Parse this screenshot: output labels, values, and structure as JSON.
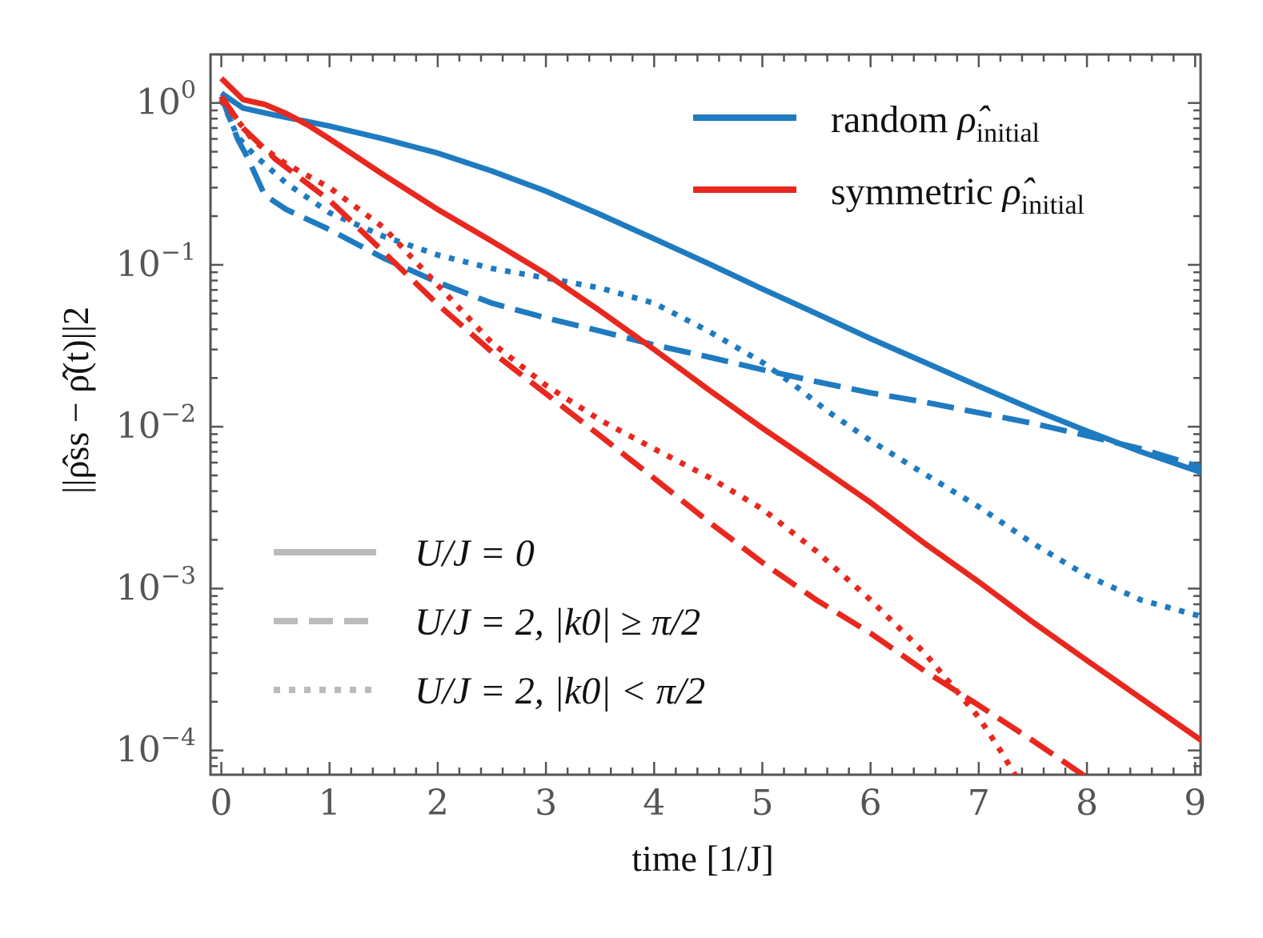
{
  "chart_data": {
    "type": "line",
    "title": "",
    "xlabel": "time  [1/J]",
    "ylabel": "||ρ̂ss − ρ̂(t)||2",
    "yscale": "log",
    "xlim": [
      -0.1,
      9.05
    ],
    "ylim_log10": [
      -4.15,
      0.3
    ],
    "x_ticks": [
      {
        "value": 0,
        "label": "0"
      },
      {
        "value": 1,
        "label": "1"
      },
      {
        "value": 2,
        "label": "2"
      },
      {
        "value": 3,
        "label": "3"
      },
      {
        "value": 4,
        "label": "4"
      },
      {
        "value": 5,
        "label": "5"
      },
      {
        "value": 6,
        "label": "6"
      },
      {
        "value": 7,
        "label": "7"
      },
      {
        "value": 8,
        "label": "8"
      },
      {
        "value": 9,
        "label": "9"
      }
    ],
    "y_ticks": [
      {
        "exp": 0,
        "base": "10",
        "sup": "0"
      },
      {
        "exp": -1,
        "base": "10",
        "sup": "−1"
      },
      {
        "exp": -2,
        "base": "10",
        "sup": "−2"
      },
      {
        "exp": -3,
        "base": "10",
        "sup": "−3"
      },
      {
        "exp": -4,
        "base": "10",
        "sup": "−4"
      }
    ],
    "colors": {
      "random": "#1f7bc0",
      "symmetric": "#e8281e",
      "legend_gray": "#bbbbbb",
      "axis": "#555555"
    },
    "legend_color": {
      "placement": "top-right",
      "entries": [
        {
          "key": "random",
          "text": "random ",
          "rho": "ρ̂",
          "sub": "initial"
        },
        {
          "key": "symmetric",
          "text": "symmetric ",
          "rho": "ρ̂",
          "sub": "initial"
        }
      ]
    },
    "legend_style": {
      "placement": "lower-left",
      "entries": [
        {
          "style": "solid",
          "text": "U/J = 0"
        },
        {
          "style": "dashed",
          "text": "U/J = 2, |k0| ≥ π/2"
        },
        {
          "style": "dotted",
          "text": "U/J = 2, |k0| < π/2"
        }
      ]
    },
    "series": [
      {
        "name": "random, U/J=0",
        "color_key": "random",
        "style": "solid",
        "x": [
          0,
          0.2,
          0.5,
          1,
          1.5,
          2,
          2.5,
          3,
          3.5,
          4,
          4.5,
          5,
          5.5,
          6,
          6.5,
          7,
          7.5,
          8,
          8.5,
          9.1
        ],
        "y": [
          1.15,
          0.93,
          0.84,
          0.72,
          0.6,
          0.49,
          0.38,
          0.285,
          0.205,
          0.145,
          0.102,
          0.071,
          0.05,
          0.035,
          0.025,
          0.0178,
          0.0128,
          0.0094,
          0.007,
          0.0051
        ]
      },
      {
        "name": "random, U/J=2, |k0|>=pi/2",
        "color_key": "random",
        "style": "dashed",
        "x": [
          0,
          0.15,
          0.25,
          0.4,
          0.6,
          1,
          1.5,
          2,
          2.5,
          3,
          3.5,
          4,
          4.5,
          5,
          5.5,
          6,
          6.5,
          7,
          7.5,
          8,
          8.5,
          9.1
        ],
        "y": [
          1.1,
          0.6,
          0.45,
          0.27,
          0.22,
          0.165,
          0.11,
          0.078,
          0.058,
          0.047,
          0.039,
          0.032,
          0.027,
          0.0225,
          0.019,
          0.0162,
          0.0142,
          0.0122,
          0.0105,
          0.0088,
          0.0073,
          0.0055
        ]
      },
      {
        "name": "random, U/J=2, |k0|<pi/2",
        "color_key": "random",
        "style": "dotted",
        "x": [
          0,
          0.15,
          0.3,
          0.6,
          1,
          1.5,
          2,
          2.5,
          3,
          3.5,
          4,
          4.5,
          5,
          5.3,
          5.6,
          6,
          6.5,
          7,
          7.5,
          8,
          8.5,
          9.1
        ],
        "y": [
          1.05,
          0.62,
          0.48,
          0.32,
          0.21,
          0.15,
          0.115,
          0.095,
          0.083,
          0.072,
          0.058,
          0.039,
          0.025,
          0.018,
          0.0125,
          0.0082,
          0.0051,
          0.0032,
          0.0019,
          0.0012,
          0.00085,
          0.00066
        ]
      },
      {
        "name": "symmetric, U/J=0",
        "color_key": "symmetric",
        "style": "solid",
        "x": [
          0,
          0.2,
          0.4,
          0.6,
          0.8,
          1,
          1.5,
          2,
          2.5,
          3,
          3.5,
          4,
          4.5,
          5,
          5.5,
          6,
          6.5,
          7,
          7.5,
          8,
          8.5,
          9.1
        ],
        "y": [
          1.42,
          1.05,
          0.98,
          0.86,
          0.73,
          0.6,
          0.36,
          0.22,
          0.14,
          0.088,
          0.052,
          0.03,
          0.017,
          0.0098,
          0.0058,
          0.0034,
          0.0019,
          0.0011,
          0.00062,
          0.00036,
          0.00021,
          0.00011
        ]
      },
      {
        "name": "symmetric, U/J=2, |k0|>=pi/2",
        "color_key": "symmetric",
        "style": "dashed",
        "x": [
          0,
          0.2,
          0.5,
          1,
          1.5,
          2,
          2.5,
          3,
          3.5,
          4,
          4.5,
          5,
          5.5,
          6,
          6.5,
          7,
          7.5,
          8
        ],
        "y": [
          1.1,
          0.7,
          0.45,
          0.25,
          0.12,
          0.057,
          0.029,
          0.016,
          0.0088,
          0.0048,
          0.0026,
          0.00145,
          0.00085,
          0.00053,
          0.00031,
          0.00019,
          0.000115,
          6.8e-05
        ]
      },
      {
        "name": "symmetric, U/J=2, |k0|<pi/2",
        "color_key": "symmetric",
        "style": "dotted",
        "x": [
          0,
          0.3,
          0.6,
          1,
          1.5,
          2,
          2.5,
          3,
          3.5,
          4,
          4.5,
          5,
          5.5,
          6,
          6.5,
          7,
          7.2,
          7.35
        ],
        "y": [
          1.05,
          0.58,
          0.42,
          0.3,
          0.17,
          0.075,
          0.033,
          0.018,
          0.011,
          0.0073,
          0.0049,
          0.0031,
          0.0017,
          0.00085,
          0.0004,
          0.00016,
          0.0001,
          6.8e-05
        ]
      }
    ]
  }
}
